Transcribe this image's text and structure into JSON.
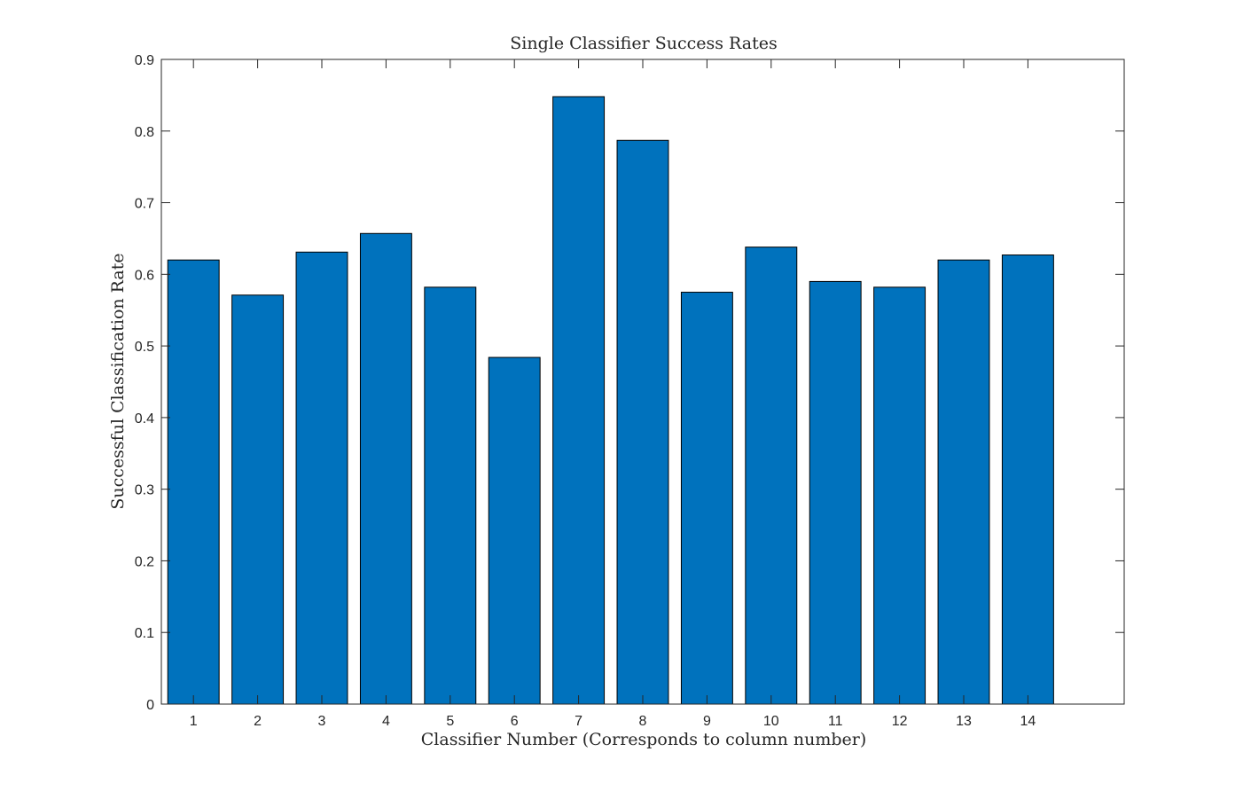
{
  "chart_data": {
    "type": "bar",
    "title": "Single Classifier Success Rates",
    "xlabel": "Classifier Number (Corresponds to column number)",
    "ylabel": "Successful Classification Rate",
    "categories": [
      "1",
      "2",
      "3",
      "4",
      "5",
      "6",
      "7",
      "8",
      "9",
      "10",
      "11",
      "12",
      "13",
      "14"
    ],
    "values": [
      0.62,
      0.571,
      0.631,
      0.657,
      0.582,
      0.484,
      0.848,
      0.787,
      0.575,
      0.638,
      0.59,
      0.582,
      0.62,
      0.627
    ],
    "ylim": [
      0,
      0.9
    ],
    "yticks": [
      "0",
      "0.1",
      "0.2",
      "0.3",
      "0.4",
      "0.5",
      "0.6",
      "0.7",
      "0.8",
      "0.9"
    ],
    "bar_color": "#0072BD",
    "grid": false,
    "legend": "none"
  }
}
